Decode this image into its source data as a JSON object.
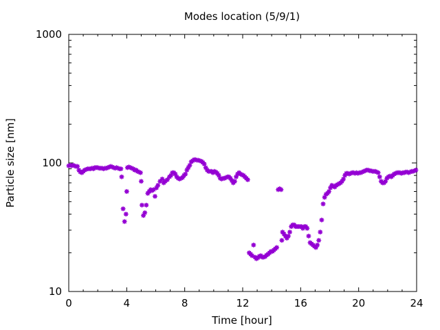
{
  "chart_data": {
    "type": "scatter",
    "title": "Modes location (5/9/1)",
    "xlabel": "Time [hour]",
    "ylabel": "Particle size [nm]",
    "xlim": [
      0,
      24
    ],
    "ylim": [
      10,
      1000
    ],
    "yscale": "log",
    "grid": false,
    "legend": "none",
    "marker_color": "#9400d3",
    "x_ticks": [
      "0",
      "4",
      "8",
      "12",
      "16",
      "20",
      "24"
    ],
    "y_ticks": [
      "10",
      "100",
      "1000"
    ],
    "points": [
      [
        0.0,
        95
      ],
      [
        0.1,
        96
      ],
      [
        0.2,
        95
      ],
      [
        0.3,
        96
      ],
      [
        0.4,
        95
      ],
      [
        0.5,
        94
      ],
      [
        0.6,
        94
      ],
      [
        0.7,
        88
      ],
      [
        0.8,
        85
      ],
      [
        0.9,
        84
      ],
      [
        1.0,
        86
      ],
      [
        1.1,
        88
      ],
      [
        1.2,
        89
      ],
      [
        1.3,
        90
      ],
      [
        1.4,
        90
      ],
      [
        1.5,
        90
      ],
      [
        1.6,
        91
      ],
      [
        1.7,
        90
      ],
      [
        1.8,
        92
      ],
      [
        1.9,
        92
      ],
      [
        2.0,
        92
      ],
      [
        2.1,
        91
      ],
      [
        2.2,
        91
      ],
      [
        2.3,
        91
      ],
      [
        2.4,
        90
      ],
      [
        2.5,
        91
      ],
      [
        2.6,
        91
      ],
      [
        2.7,
        92
      ],
      [
        2.8,
        93
      ],
      [
        2.9,
        94
      ],
      [
        3.0,
        93
      ],
      [
        3.1,
        92
      ],
      [
        3.2,
        91
      ],
      [
        3.3,
        92
      ],
      [
        3.4,
        91
      ],
      [
        3.5,
        90
      ],
      [
        3.6,
        90
      ],
      [
        3.65,
        78
      ],
      [
        3.75,
        44
      ],
      [
        3.85,
        35
      ],
      [
        3.95,
        40
      ],
      [
        4.0,
        60
      ],
      [
        4.05,
        92
      ],
      [
        4.15,
        93
      ],
      [
        4.25,
        92
      ],
      [
        4.35,
        91
      ],
      [
        4.45,
        90
      ],
      [
        4.55,
        88
      ],
      [
        4.65,
        88
      ],
      [
        4.75,
        86
      ],
      [
        4.85,
        85
      ],
      [
        4.95,
        84
      ],
      [
        5.0,
        72
      ],
      [
        5.05,
        47
      ],
      [
        5.15,
        39
      ],
      [
        5.25,
        41
      ],
      [
        5.35,
        47
      ],
      [
        5.45,
        58
      ],
      [
        5.55,
        60
      ],
      [
        5.65,
        62
      ],
      [
        5.75,
        61
      ],
      [
        5.85,
        62
      ],
      [
        5.95,
        55
      ],
      [
        6.05,
        64
      ],
      [
        6.15,
        67
      ],
      [
        6.3,
        72
      ],
      [
        6.45,
        75
      ],
      [
        6.55,
        70
      ],
      [
        6.65,
        72
      ],
      [
        6.8,
        74
      ],
      [
        6.95,
        78
      ],
      [
        7.05,
        80
      ],
      [
        7.15,
        84
      ],
      [
        7.25,
        84
      ],
      [
        7.35,
        82
      ],
      [
        7.45,
        78
      ],
      [
        7.55,
        76
      ],
      [
        7.65,
        75
      ],
      [
        7.75,
        76
      ],
      [
        7.85,
        77
      ],
      [
        7.95,
        80
      ],
      [
        8.05,
        82
      ],
      [
        8.15,
        88
      ],
      [
        8.25,
        92
      ],
      [
        8.35,
        96
      ],
      [
        8.45,
        102
      ],
      [
        8.55,
        104
      ],
      [
        8.65,
        106
      ],
      [
        8.75,
        106
      ],
      [
        8.85,
        105
      ],
      [
        8.95,
        105
      ],
      [
        9.05,
        104
      ],
      [
        9.15,
        103
      ],
      [
        9.25,
        101
      ],
      [
        9.35,
        98
      ],
      [
        9.45,
        92
      ],
      [
        9.55,
        88
      ],
      [
        9.65,
        86
      ],
      [
        9.75,
        86
      ],
      [
        9.85,
        86
      ],
      [
        9.95,
        84
      ],
      [
        10.05,
        86
      ],
      [
        10.15,
        85
      ],
      [
        10.25,
        83
      ],
      [
        10.35,
        80
      ],
      [
        10.45,
        76
      ],
      [
        10.55,
        75
      ],
      [
        10.65,
        76
      ],
      [
        10.75,
        76
      ],
      [
        10.85,
        77
      ],
      [
        10.95,
        78
      ],
      [
        11.05,
        78
      ],
      [
        11.15,
        76
      ],
      [
        11.25,
        73
      ],
      [
        11.35,
        70
      ],
      [
        11.45,
        72
      ],
      [
        11.55,
        78
      ],
      [
        11.65,
        82
      ],
      [
        11.75,
        84
      ],
      [
        11.85,
        82
      ],
      [
        11.95,
        81
      ],
      [
        12.05,
        80
      ],
      [
        12.15,
        78
      ],
      [
        12.25,
        76
      ],
      [
        12.35,
        74
      ],
      [
        12.45,
        20
      ],
      [
        12.55,
        19.5
      ],
      [
        12.65,
        19
      ],
      [
        12.75,
        23
      ],
      [
        12.85,
        18.5
      ],
      [
        12.95,
        18
      ],
      [
        13.05,
        18.3
      ],
      [
        13.15,
        18.8
      ],
      [
        13.25,
        19
      ],
      [
        13.35,
        18.5
      ],
      [
        13.45,
        18.5
      ],
      [
        13.55,
        18.7
      ],
      [
        13.65,
        19.2
      ],
      [
        13.75,
        19.5
      ],
      [
        13.85,
        20
      ],
      [
        13.95,
        20.5
      ],
      [
        14.05,
        20.5
      ],
      [
        14.15,
        21
      ],
      [
        14.25,
        21.5
      ],
      [
        14.35,
        22
      ],
      [
        14.45,
        62
      ],
      [
        14.55,
        63
      ],
      [
        14.65,
        62
      ],
      [
        14.7,
        25
      ],
      [
        14.75,
        29
      ],
      [
        14.85,
        28
      ],
      [
        14.95,
        27
      ],
      [
        15.05,
        26
      ],
      [
        15.15,
        27
      ],
      [
        15.25,
        29
      ],
      [
        15.35,
        32
      ],
      [
        15.45,
        33
      ],
      [
        15.55,
        33
      ],
      [
        15.65,
        32
      ],
      [
        15.75,
        32
      ],
      [
        15.85,
        32
      ],
      [
        15.95,
        32
      ],
      [
        16.05,
        32
      ],
      [
        16.15,
        31
      ],
      [
        16.25,
        32
      ],
      [
        16.35,
        32
      ],
      [
        16.45,
        31
      ],
      [
        16.55,
        27
      ],
      [
        16.65,
        24
      ],
      [
        16.75,
        23.5
      ],
      [
        16.85,
        23
      ],
      [
        16.95,
        22.5
      ],
      [
        17.05,
        22
      ],
      [
        17.15,
        23
      ],
      [
        17.25,
        25
      ],
      [
        17.35,
        29
      ],
      [
        17.45,
        36
      ],
      [
        17.55,
        48
      ],
      [
        17.65,
        54
      ],
      [
        17.75,
        57
      ],
      [
        17.85,
        58
      ],
      [
        17.95,
        60
      ],
      [
        18.05,
        64
      ],
      [
        18.15,
        67
      ],
      [
        18.25,
        66
      ],
      [
        18.35,
        65
      ],
      [
        18.45,
        67
      ],
      [
        18.55,
        68
      ],
      [
        18.65,
        69
      ],
      [
        18.75,
        70
      ],
      [
        18.85,
        72
      ],
      [
        18.95,
        75
      ],
      [
        19.05,
        80
      ],
      [
        19.15,
        83
      ],
      [
        19.25,
        83
      ],
      [
        19.35,
        82
      ],
      [
        19.45,
        83
      ],
      [
        19.55,
        84
      ],
      [
        19.65,
        84
      ],
      [
        19.75,
        83
      ],
      [
        19.85,
        84
      ],
      [
        19.95,
        83
      ],
      [
        20.05,
        84
      ],
      [
        20.15,
        84
      ],
      [
        20.25,
        85
      ],
      [
        20.35,
        86
      ],
      [
        20.45,
        87
      ],
      [
        20.55,
        88
      ],
      [
        20.65,
        88
      ],
      [
        20.75,
        87
      ],
      [
        20.85,
        87
      ],
      [
        20.95,
        86
      ],
      [
        21.05,
        86
      ],
      [
        21.15,
        86
      ],
      [
        21.25,
        85
      ],
      [
        21.35,
        84
      ],
      [
        21.45,
        78
      ],
      [
        21.55,
        72
      ],
      [
        21.65,
        70
      ],
      [
        21.75,
        70
      ],
      [
        21.85,
        72
      ],
      [
        21.95,
        76
      ],
      [
        22.05,
        78
      ],
      [
        22.15,
        79
      ],
      [
        22.25,
        78
      ],
      [
        22.35,
        80
      ],
      [
        22.45,
        82
      ],
      [
        22.55,
        83
      ],
      [
        22.65,
        84
      ],
      [
        22.75,
        84
      ],
      [
        22.85,
        84
      ],
      [
        22.95,
        83
      ],
      [
        23.05,
        84
      ],
      [
        23.15,
        84
      ],
      [
        23.25,
        85
      ],
      [
        23.35,
        85
      ],
      [
        23.45,
        84
      ],
      [
        23.55,
        85
      ],
      [
        23.65,
        86
      ],
      [
        23.75,
        86
      ],
      [
        23.85,
        87
      ],
      [
        23.95,
        88
      ]
    ]
  }
}
